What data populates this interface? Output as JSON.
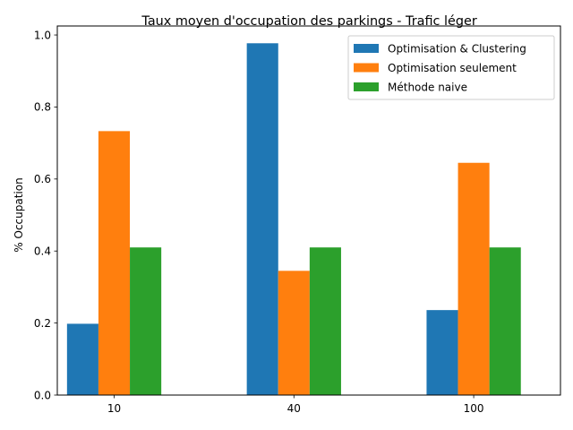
{
  "chart_data": {
    "type": "bar",
    "title": "Taux moyen d'occupation des parkings - Trafic léger",
    "xlabel": "",
    "ylabel": "% Occupation",
    "categories": [
      "10",
      "40",
      "100"
    ],
    "series": [
      {
        "name": "Optimisation & Clustering",
        "values": [
          0.198,
          0.977,
          0.236
        ],
        "color": "#1f77b4"
      },
      {
        "name": "Optimisation seulement",
        "values": [
          0.733,
          0.345,
          0.645
        ],
        "color": "#ff7f0e"
      },
      {
        "name": "Méthode naive",
        "values": [
          0.41,
          0.41,
          0.41
        ],
        "color": "#2ca02c"
      }
    ],
    "ylim": [
      0,
      1.025
    ],
    "yticks": [
      "0.0",
      "0.2",
      "0.4",
      "0.6",
      "0.8",
      "1.0"
    ],
    "grid": false,
    "legend_position": "top-right"
  }
}
